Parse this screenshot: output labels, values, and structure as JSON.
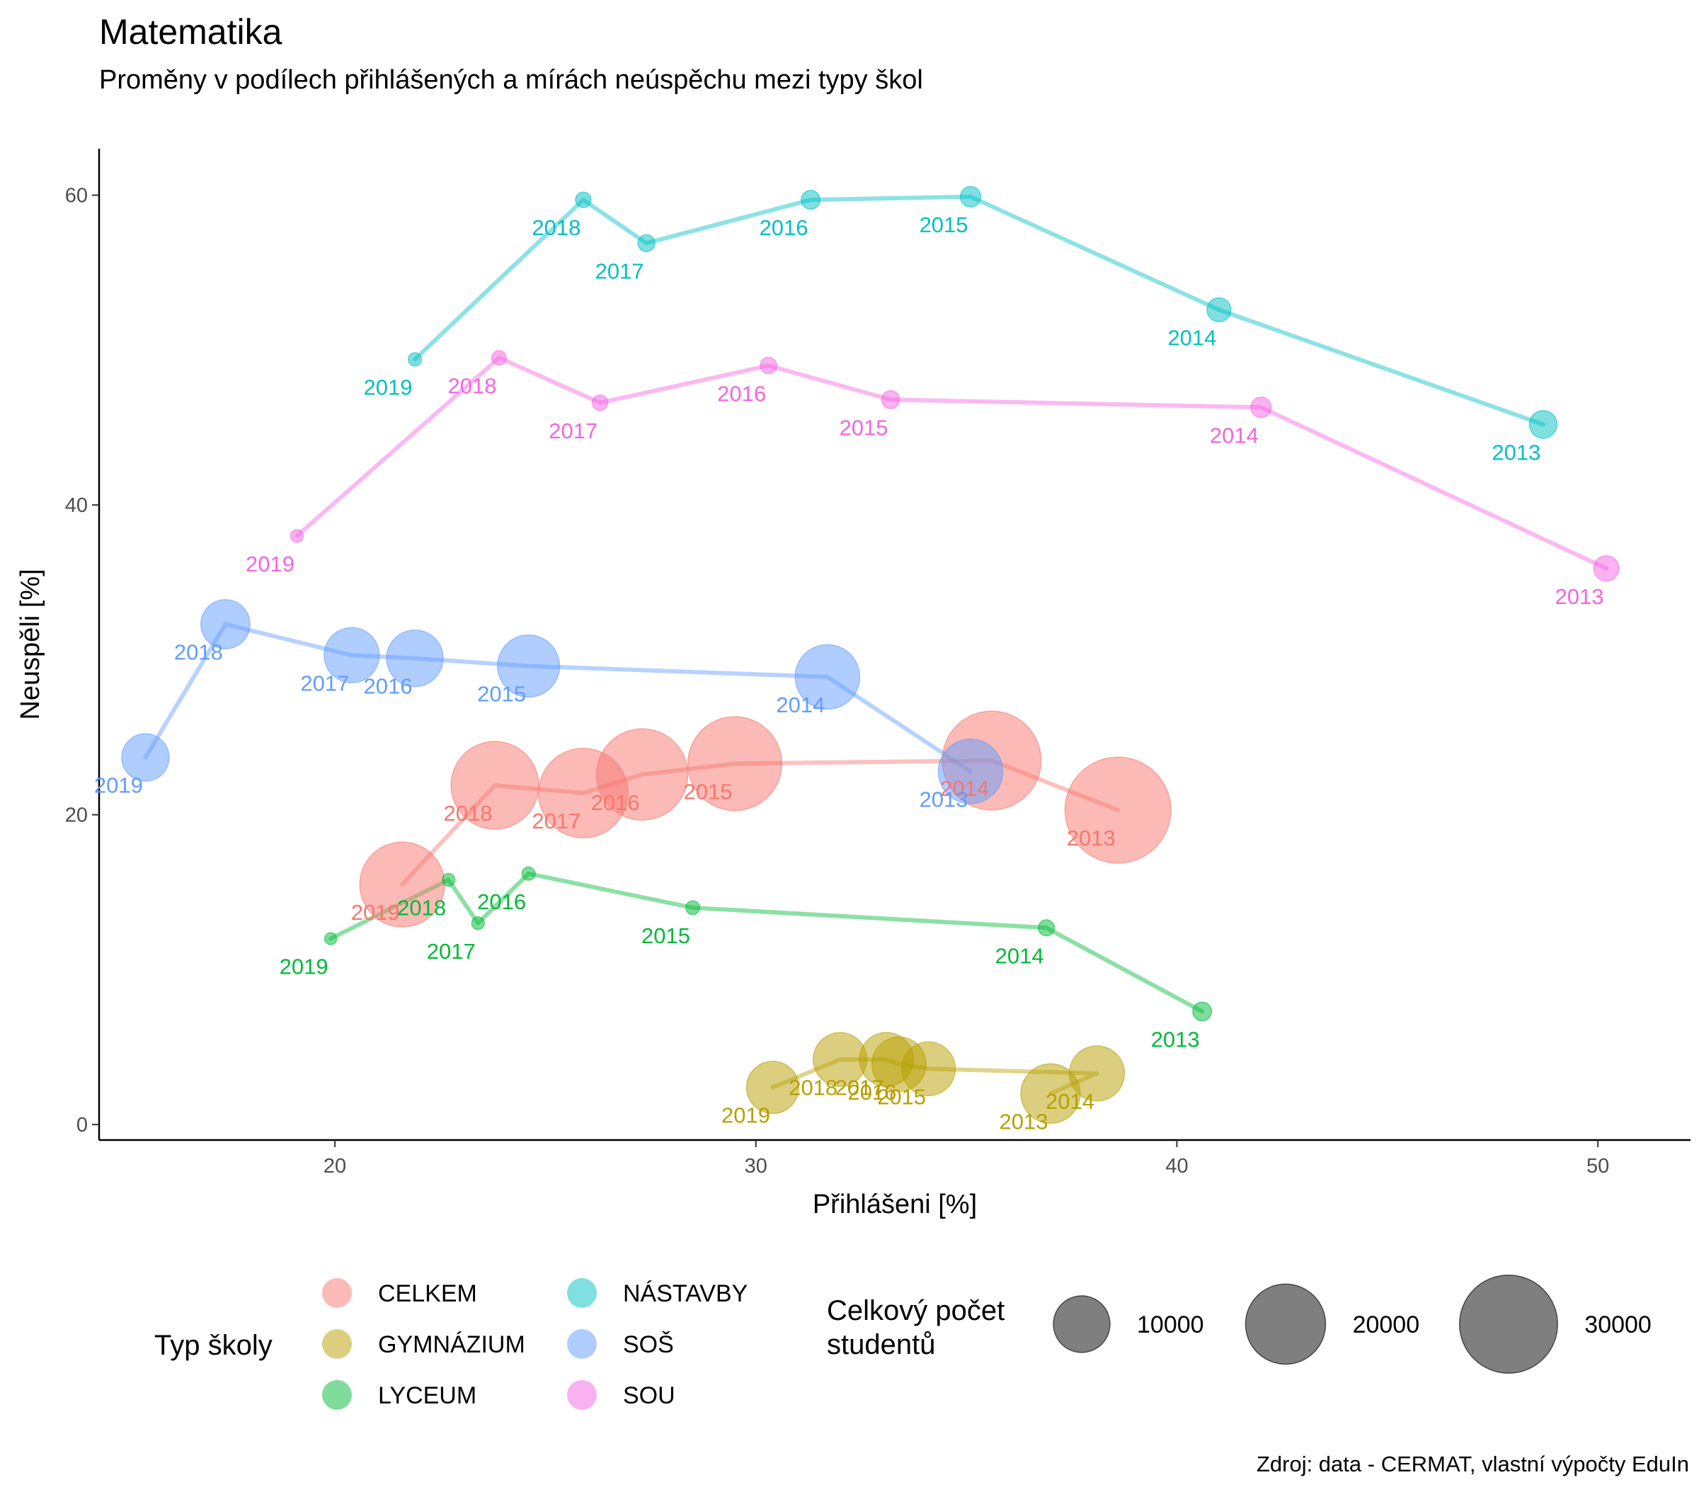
{
  "chart_data": {
    "type": "scatter",
    "title": "Matematika",
    "subtitle": "Proměny v podílech přihlášených a mírách neúspěchu mezi typy škol",
    "caption": "Zdroj: data - CERMAT, vlastní výpočty EduIn",
    "xlabel": "Přihlášeni [%]",
    "ylabel": "Neuspěli [%]",
    "xlim": [
      14.4,
      52.2
    ],
    "ylim": [
      -1.0,
      63.0
    ],
    "x_ticks": [
      20,
      30,
      40,
      50
    ],
    "y_ticks": [
      0,
      20,
      40,
      60
    ],
    "grid": false,
    "legend_color": {
      "title": "Typ školy",
      "position": "bottom"
    },
    "legend_size": {
      "title": [
        "Celkový počet",
        "studentů"
      ],
      "values": [
        10000,
        20000,
        30000
      ],
      "position": "bottom"
    },
    "series": [
      {
        "name": "CELKEM",
        "color": "#F8766D",
        "points": [
          {
            "year": "2013",
            "x": 38.6,
            "y": 20.3,
            "n": 35000
          },
          {
            "year": "2014",
            "x": 35.6,
            "y": 23.5,
            "n": 30500
          },
          {
            "year": "2015",
            "x": 29.5,
            "y": 23.3,
            "n": 27500
          },
          {
            "year": "2016",
            "x": 27.3,
            "y": 22.6,
            "n": 26000
          },
          {
            "year": "2017",
            "x": 25.9,
            "y": 21.4,
            "n": 25000
          },
          {
            "year": "2018",
            "x": 23.8,
            "y": 21.9,
            "n": 24000
          },
          {
            "year": "2019",
            "x": 21.6,
            "y": 15.5,
            "n": 22500
          }
        ]
      },
      {
        "name": "GYMNÁZIUM",
        "color": "#B79F00",
        "points": [
          {
            "year": "2013",
            "x": 37.0,
            "y": 2.0,
            "n": 11000
          },
          {
            "year": "2014",
            "x": 38.1,
            "y": 3.3,
            "n": 9500
          },
          {
            "year": "2015",
            "x": 34.1,
            "y": 3.6,
            "n": 9000
          },
          {
            "year": "2016",
            "x": 33.4,
            "y": 3.9,
            "n": 9200
          },
          {
            "year": "2017",
            "x": 33.1,
            "y": 4.2,
            "n": 9100
          },
          {
            "year": "2018",
            "x": 32.0,
            "y": 4.2,
            "n": 9000
          },
          {
            "year": "2019",
            "x": 30.4,
            "y": 2.4,
            "n": 8500
          }
        ]
      },
      {
        "name": "LYCEUM",
        "color": "#00BA38",
        "points": [
          {
            "year": "2013",
            "x": 40.6,
            "y": 7.3,
            "n": 1100
          },
          {
            "year": "2014",
            "x": 36.9,
            "y": 12.7,
            "n": 800
          },
          {
            "year": "2015",
            "x": 28.5,
            "y": 14.0,
            "n": 600
          },
          {
            "year": "2016",
            "x": 24.6,
            "y": 16.2,
            "n": 550
          },
          {
            "year": "2017",
            "x": 23.4,
            "y": 13.0,
            "n": 500
          },
          {
            "year": "2018",
            "x": 22.7,
            "y": 15.8,
            "n": 500
          },
          {
            "year": "2019",
            "x": 19.9,
            "y": 12.0,
            "n": 450
          }
        ]
      },
      {
        "name": "NÁSTAVBY",
        "color": "#00BFC4",
        "points": [
          {
            "year": "2013",
            "x": 48.7,
            "y": 45.2,
            "n": 2400
          },
          {
            "year": "2014",
            "x": 41.0,
            "y": 52.6,
            "n": 1800
          },
          {
            "year": "2015",
            "x": 35.1,
            "y": 59.9,
            "n": 1300
          },
          {
            "year": "2016",
            "x": 31.3,
            "y": 59.7,
            "n": 1100
          },
          {
            "year": "2017",
            "x": 27.4,
            "y": 56.9,
            "n": 900
          },
          {
            "year": "2018",
            "x": 25.9,
            "y": 59.7,
            "n": 750
          },
          {
            "year": "2019",
            "x": 21.9,
            "y": 49.4,
            "n": 550
          }
        ]
      },
      {
        "name": "SOŠ",
        "color": "#619CFF",
        "points": [
          {
            "year": "2013",
            "x": 35.1,
            "y": 22.8,
            "n": 13000
          },
          {
            "year": "2014",
            "x": 31.7,
            "y": 28.9,
            "n": 13000
          },
          {
            "year": "2015",
            "x": 24.6,
            "y": 29.6,
            "n": 12000
          },
          {
            "year": "2016",
            "x": 21.9,
            "y": 30.1,
            "n": 10000
          },
          {
            "year": "2017",
            "x": 20.4,
            "y": 30.3,
            "n": 9500
          },
          {
            "year": "2018",
            "x": 17.4,
            "y": 32.3,
            "n": 7500
          },
          {
            "year": "2019",
            "x": 15.5,
            "y": 23.7,
            "n": 7000
          }
        ]
      },
      {
        "name": "SOU",
        "color": "#F564E3",
        "points": [
          {
            "year": "2013",
            "x": 50.2,
            "y": 35.9,
            "n": 2000
          },
          {
            "year": "2014",
            "x": 42.0,
            "y": 46.3,
            "n": 1300
          },
          {
            "year": "2015",
            "x": 33.2,
            "y": 46.8,
            "n": 1000
          },
          {
            "year": "2016",
            "x": 30.3,
            "y": 49.0,
            "n": 850
          },
          {
            "year": "2017",
            "x": 26.3,
            "y": 46.6,
            "n": 750
          },
          {
            "year": "2018",
            "x": 23.9,
            "y": 49.5,
            "n": 650
          },
          {
            "year": "2019",
            "x": 19.1,
            "y": 38.0,
            "n": 500
          }
        ]
      }
    ]
  }
}
